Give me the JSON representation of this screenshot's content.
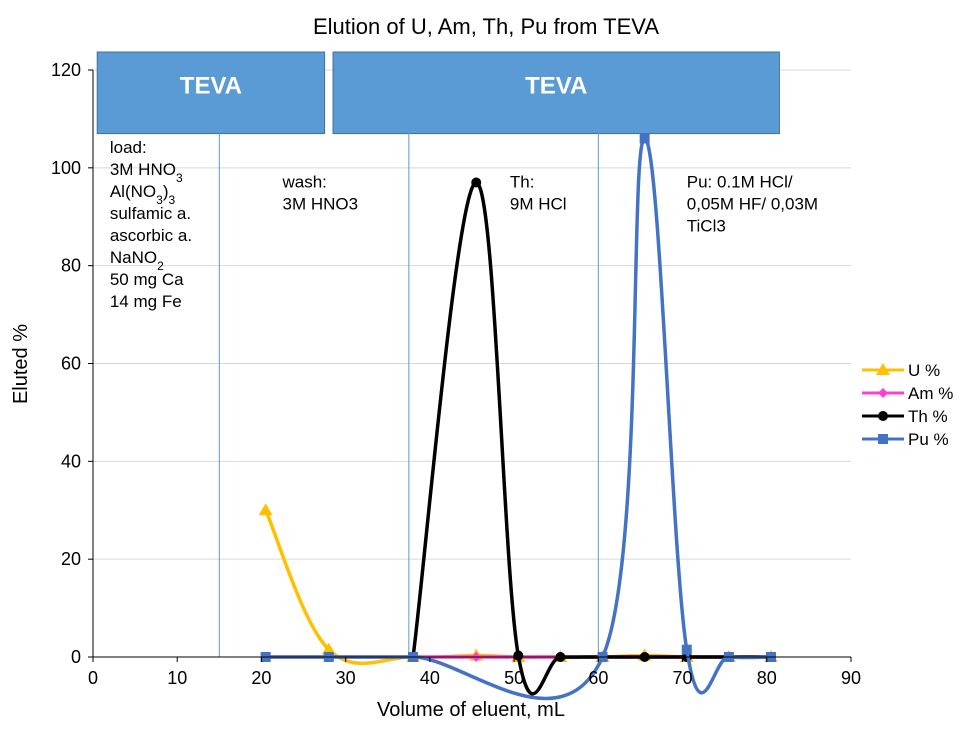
{
  "chart_data": {
    "type": "line",
    "title": "Elution of U, Am, Th, Pu from TEVA",
    "xlabel": "Volume of eluent, mL",
    "ylabel": "Eluted %",
    "xlim": [
      0,
      90
    ],
    "ylim": [
      0,
      120
    ],
    "xticks": [
      0,
      10,
      20,
      30,
      40,
      50,
      60,
      70,
      80,
      90
    ],
    "yticks": [
      0,
      20,
      40,
      60,
      80,
      100,
      120
    ],
    "grid": "horizontal",
    "legend_position": "right",
    "series": [
      {
        "name": "U %",
        "color": "#FFC000",
        "marker": "triangle",
        "points": [
          [
            20.5,
            30
          ],
          [
            28,
            1.5
          ],
          [
            38,
            0
          ],
          [
            45.5,
            0.3
          ],
          [
            50.5,
            0
          ],
          [
            55.5,
            0
          ],
          [
            60.5,
            0
          ],
          [
            65.5,
            0.3
          ],
          [
            70.5,
            0
          ],
          [
            75.5,
            0
          ],
          [
            80.5,
            0
          ]
        ]
      },
      {
        "name": "Am %",
        "color": "#FF3FCF",
        "marker": "diamond",
        "points": [
          [
            20.5,
            0
          ],
          [
            28,
            0
          ],
          [
            38,
            0
          ],
          [
            45.5,
            0
          ],
          [
            50.5,
            0
          ],
          [
            55.5,
            0
          ],
          [
            60.5,
            0
          ],
          [
            65.5,
            0
          ],
          [
            70.5,
            0
          ],
          [
            75.5,
            0
          ],
          [
            80.5,
            0
          ]
        ]
      },
      {
        "name": "Th %",
        "color": "#000000",
        "marker": "circle",
        "points": [
          [
            38,
            0
          ],
          [
            45.5,
            97
          ],
          [
            50.5,
            0.3
          ],
          [
            55.5,
            0
          ],
          [
            60.5,
            0
          ],
          [
            65.5,
            0
          ],
          [
            70.5,
            0
          ],
          [
            75.5,
            0
          ],
          [
            80.5,
            0
          ]
        ]
      },
      {
        "name": "Pu %",
        "color": "#4472C4",
        "marker": "square",
        "points": [
          [
            20.5,
            0
          ],
          [
            28,
            0
          ],
          [
            38,
            0
          ],
          [
            60.5,
            0
          ],
          [
            65.5,
            106
          ],
          [
            70.5,
            1.5
          ],
          [
            75.5,
            0
          ],
          [
            80.5,
            0
          ]
        ]
      }
    ],
    "phase_dividers_x": [
      15,
      37.5,
      60
    ],
    "column_labels": [
      {
        "text": "TEVA",
        "x_start": 0.5,
        "x_end": 27.5
      },
      {
        "text": "TEVA",
        "x_start": 28.5,
        "x_end": 81.5
      }
    ],
    "annotations": [
      {
        "x": 2,
        "y": 103,
        "lines": [
          "load:",
          "3M HNO|3",
          "Al(NO|3|)|3",
          "sulfamic a.",
          "ascorbic a.",
          "NaNO|2",
          "50 mg Ca",
          "14 mg Fe"
        ]
      },
      {
        "x": 22.5,
        "y": 96,
        "lines": [
          "wash:",
          "3M HNO3"
        ]
      },
      {
        "x": 49.5,
        "y": 96,
        "lines": [
          "Th:",
          "9M HCl"
        ]
      },
      {
        "x": 70.5,
        "y": 96,
        "lines": [
          "Pu: 0.1M HCl/",
          "0,05M HF/ 0,03M",
          "TiCl3"
        ]
      }
    ]
  }
}
